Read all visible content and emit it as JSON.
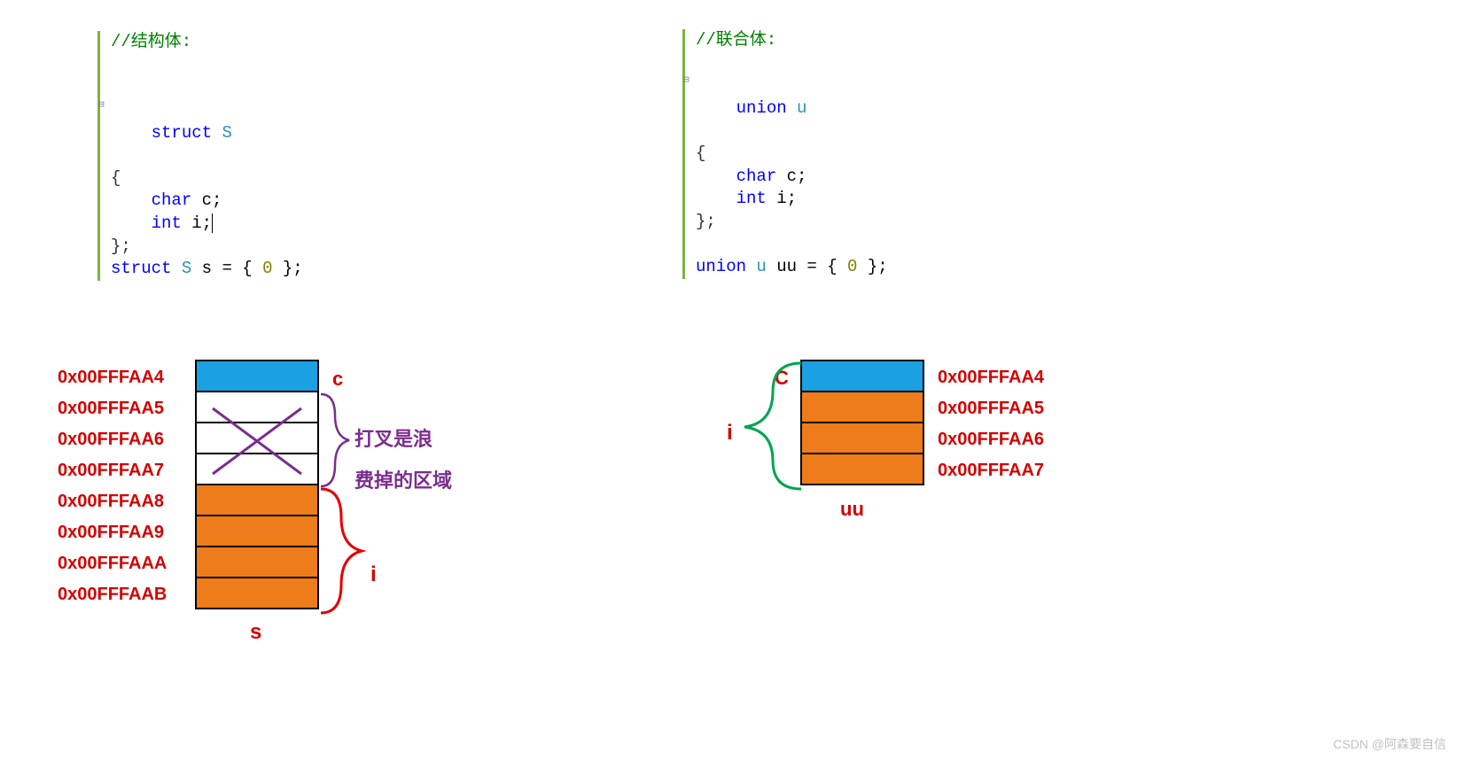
{
  "colors": {
    "blue_cell": "#1ba1e2",
    "orange_cell": "#ee7c1b",
    "white_cell": "#ffffff",
    "border": "#000000",
    "addr_red": "#d40000",
    "x_purple": "#7b2d8e",
    "brace_red": "#e60000",
    "brace_green": "#00a550",
    "code_green_bar": "#7cb342",
    "comment": "#008000",
    "keyword": "#0000ff",
    "typename": "#2b91af"
  },
  "code_left": {
    "comment": "//结构体:",
    "lines": [
      "struct S",
      "{",
      "    char c;",
      "    int i;",
      "};",
      "struct S s = { 0 };"
    ]
  },
  "code_right": {
    "comment": "//联合体:",
    "lines": [
      "union u",
      "{",
      "    char c;",
      "    int i;",
      "};",
      "",
      "union u uu = { 0 };"
    ]
  },
  "struct_diagram": {
    "label_s": "s",
    "label_c": "c",
    "label_i": "i",
    "waste_text_1": "打叉是浪",
    "waste_text_2": "费掉的区域",
    "cells": [
      {
        "addr": "0x00FFFAA4",
        "color": "#1ba1e2"
      },
      {
        "addr": "0x00FFFAA5",
        "color": "#ffffff"
      },
      {
        "addr": "0x00FFFAA6",
        "color": "#ffffff"
      },
      {
        "addr": "0x00FFFAA7",
        "color": "#ffffff"
      },
      {
        "addr": "0x00FFFAA8",
        "color": "#ee7c1b"
      },
      {
        "addr": "0x00FFFAA9",
        "color": "#ee7c1b"
      },
      {
        "addr": "0x00FFFAAA",
        "color": "#ee7c1b"
      },
      {
        "addr": "0x00FFFAAB",
        "color": "#ee7c1b"
      }
    ]
  },
  "union_diagram": {
    "label_uu": "uu",
    "label_c": "C",
    "label_i": "i",
    "cells": [
      {
        "addr": "0x00FFFAA4",
        "color": "#1ba1e2"
      },
      {
        "addr": "0x00FFFAA5",
        "color": "#ee7c1b"
      },
      {
        "addr": "0x00FFFAA6",
        "color": "#ee7c1b"
      },
      {
        "addr": "0x00FFFAA7",
        "color": "#ee7c1b"
      }
    ]
  },
  "watermark": "CSDN @阿森要自信"
}
